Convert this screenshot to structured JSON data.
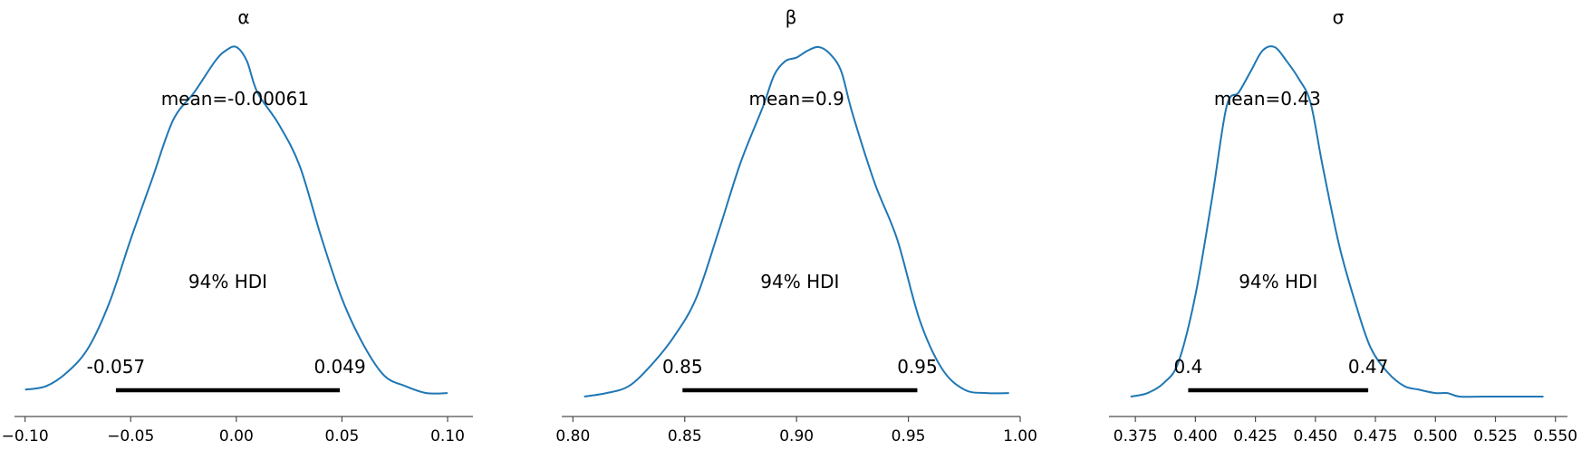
{
  "chart_data": [
    {
      "type": "line",
      "title": "α",
      "xlim": [
        -0.105,
        0.112
      ],
      "ticks": [
        -0.1,
        -0.05,
        0.0,
        0.05,
        0.1
      ],
      "tick_labels": [
        "−0.10",
        "−0.05",
        "0.00",
        "0.05",
        "0.10"
      ],
      "mean_label": "mean=-0.00061",
      "mean": -0.00061,
      "hdi_label": "94% HDI",
      "hdi": [
        -0.057,
        0.049
      ],
      "hdi_labels": [
        "-0.057",
        "0.049"
      ],
      "color": "#1f77b4",
      "x": [
        -0.1,
        -0.09,
        -0.08,
        -0.07,
        -0.06,
        -0.05,
        -0.04,
        -0.03,
        -0.02,
        -0.01,
        -0.005,
        0.0,
        0.005,
        0.01,
        0.02,
        0.03,
        0.04,
        0.05,
        0.06,
        0.07,
        0.08,
        0.09,
        0.1
      ],
      "y": [
        0.02,
        0.03,
        0.07,
        0.14,
        0.27,
        0.45,
        0.62,
        0.79,
        0.87,
        0.96,
        0.99,
        1.0,
        0.96,
        0.87,
        0.78,
        0.66,
        0.46,
        0.28,
        0.15,
        0.06,
        0.03,
        0.01,
        0.01
      ]
    },
    {
      "type": "line",
      "title": "β",
      "xlim": [
        0.795,
        1.0
      ],
      "ticks": [
        0.8,
        0.85,
        0.9,
        0.95,
        1.0
      ],
      "tick_labels": [
        "0.80",
        "0.85",
        "0.90",
        "0.95",
        "1.00"
      ],
      "mean_label": "mean=0.9",
      "mean": 0.9,
      "hdi_label": "94% HDI",
      "hdi": [
        0.849,
        0.954
      ],
      "hdi_labels": [
        "0.85",
        "0.95"
      ],
      "color": "#1f77b4",
      "x": [
        0.805,
        0.815,
        0.825,
        0.835,
        0.845,
        0.855,
        0.865,
        0.875,
        0.885,
        0.89,
        0.895,
        0.9,
        0.905,
        0.91,
        0.915,
        0.92,
        0.925,
        0.935,
        0.945,
        0.955,
        0.965,
        0.975,
        0.985,
        0.995
      ],
      "y": [
        0.0,
        0.01,
        0.03,
        0.09,
        0.17,
        0.28,
        0.47,
        0.67,
        0.83,
        0.92,
        0.96,
        0.97,
        0.99,
        1.0,
        0.98,
        0.93,
        0.81,
        0.61,
        0.45,
        0.22,
        0.08,
        0.02,
        0.01,
        0.01
      ]
    },
    {
      "type": "line",
      "title": "σ",
      "xlim": [
        0.364,
        0.555
      ],
      "ticks": [
        0.375,
        0.4,
        0.425,
        0.45,
        0.475,
        0.5,
        0.525,
        0.55
      ],
      "tick_labels": [
        "0.375",
        "0.400",
        "0.425",
        "0.450",
        "0.475",
        "0.500",
        "0.525",
        "0.550"
      ],
      "mean_label": "mean=0.43",
      "mean": 0.43,
      "hdi_label": "94% HDI",
      "hdi": [
        0.397,
        0.472
      ],
      "hdi_labels": [
        "0.4",
        "0.47"
      ],
      "color": "#1f77b4",
      "x": [
        0.373,
        0.38,
        0.387,
        0.393,
        0.4,
        0.407,
        0.413,
        0.418,
        0.423,
        0.428,
        0.433,
        0.438,
        0.443,
        0.448,
        0.453,
        0.46,
        0.467,
        0.473,
        0.48,
        0.487,
        0.493,
        0.5,
        0.505,
        0.51,
        0.52,
        0.53,
        0.545
      ],
      "y": [
        0.0,
        0.01,
        0.04,
        0.1,
        0.29,
        0.57,
        0.83,
        0.87,
        0.93,
        0.99,
        1.0,
        0.96,
        0.91,
        0.84,
        0.66,
        0.43,
        0.26,
        0.14,
        0.07,
        0.03,
        0.02,
        0.01,
        0.01,
        0.0,
        0.0,
        0.0,
        0.0
      ]
    }
  ]
}
